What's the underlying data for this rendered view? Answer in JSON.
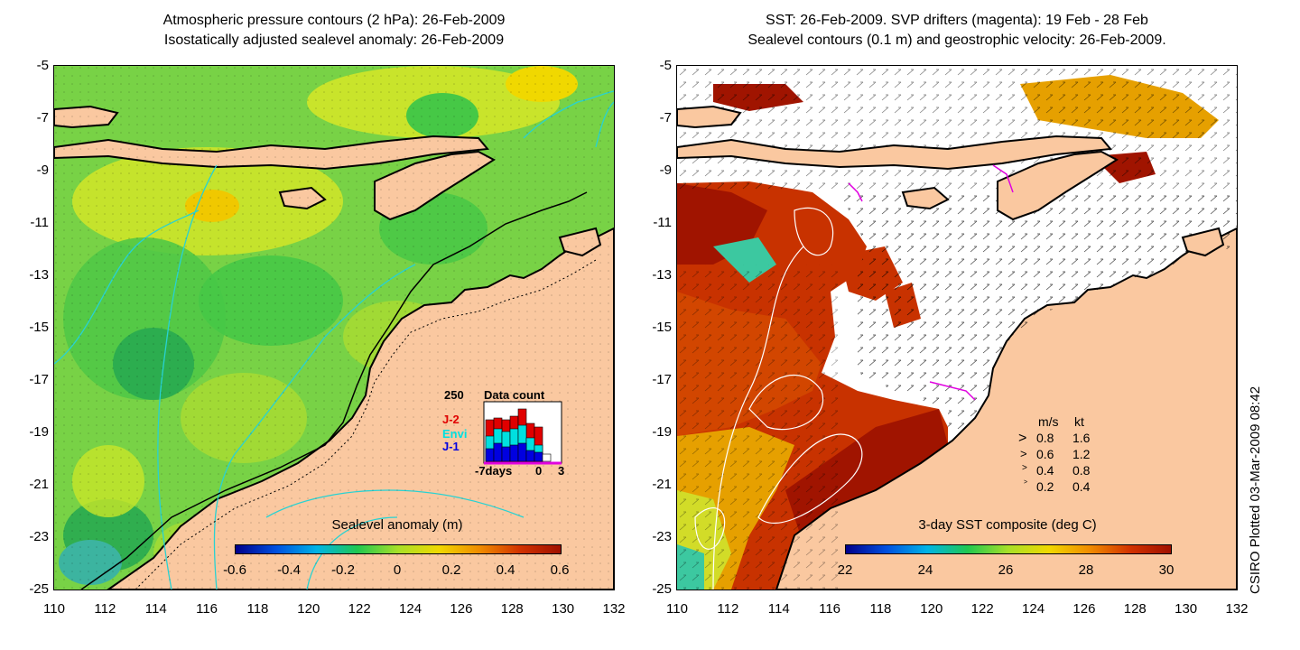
{
  "left_panel": {
    "title_line1": "Atmospheric pressure contours (2 hPa): 26-Feb-2009",
    "title_line2": "Isostatically adjusted sealevel anomaly: 26-Feb-2009",
    "colorbar_title": "Sealevel anomaly (m)",
    "colorbar_ticks": [
      "-0.6",
      "-0.4",
      "-0.2",
      "0",
      "0.2",
      "0.4",
      "0.6"
    ],
    "colorbar_colors": [
      "#00008b",
      "#0050e0",
      "#00b4e6",
      "#20c850",
      "#a8e028",
      "#f0d800",
      "#f08c00",
      "#d23200",
      "#a01000"
    ],
    "data_count": {
      "title": "Data count",
      "max_label": "250",
      "series": [
        {
          "name": "J-2",
          "color": "#e00000"
        },
        {
          "name": "Envi",
          "color": "#00e0e0"
        },
        {
          "name": "J-1",
          "color": "#0000e0"
        }
      ],
      "axis_labels": [
        "-7days",
        "0",
        "3"
      ]
    }
  },
  "right_panel": {
    "title_line1": "SST: 26-Feb-2009. SVP drifters (magenta): 19 Feb - 28 Feb",
    "title_line2": "Sealevel contours (0.1 m) and geostrophic velocity: 26-Feb-2009.",
    "colorbar_title": "3-day SST composite (deg C)",
    "colorbar_ticks": [
      "22",
      "24",
      "26",
      "28",
      "30"
    ],
    "colorbar_colors": [
      "#00008b",
      "#0050e0",
      "#00b4e6",
      "#20c850",
      "#a8e028",
      "#f0d800",
      "#f08c00",
      "#d23200",
      "#a01000"
    ],
    "velocity_legend": {
      "header_ms": "m/s",
      "header_kt": "kt",
      "rows": [
        {
          "ms": "0.8",
          "kt": "1.6"
        },
        {
          "ms": "0.6",
          "kt": "1.2"
        },
        {
          "ms": "0.4",
          "kt": "0.8"
        },
        {
          "ms": "0.2",
          "kt": "0.4"
        }
      ]
    }
  },
  "axes": {
    "lat_ticks": [
      "-5",
      "-7",
      "-9",
      "-11",
      "-13",
      "-15",
      "-17",
      "-19",
      "-21",
      "-23",
      "-25"
    ],
    "lon_ticks": [
      "110",
      "112",
      "114",
      "116",
      "118",
      "120",
      "122",
      "124",
      "126",
      "128",
      "130",
      "132"
    ]
  },
  "colors": {
    "land": "#fac8a0",
    "sea_green": "#64d23c",
    "sea_yellow": "#c8e628",
    "sea_cyan": "#3cc8a0",
    "sst_dark_red": "#a01400",
    "sst_red": "#c83200",
    "contour_cyan": "#28d2d2"
  },
  "credit": "CSIRO Plotted 03-Mar-2009 08:42"
}
